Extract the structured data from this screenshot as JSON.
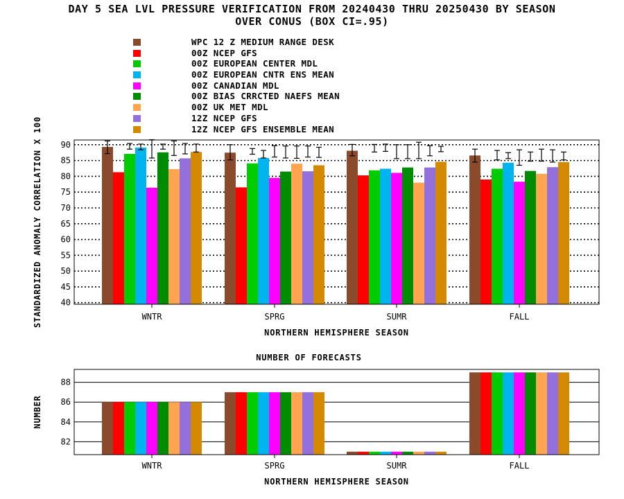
{
  "title_line1": "DAY 5 SEA LVL PRESSURE VERIFICATION FROM 20240430 THRU 20250430 BY SEASON",
  "title_line2": "OVER CONUS (BOX CI=.95)",
  "legend": [
    {
      "label": "WPC 12 Z MEDIUM RANGE DESK",
      "color": "#8b4a2b"
    },
    {
      "label": "00Z NCEP GFS",
      "color": "#ff0000"
    },
    {
      "label": "00Z EUROPEAN CENTER MDL",
      "color": "#00cc00"
    },
    {
      "label": "00Z EUROPEAN CNTR ENS MEAN",
      "color": "#00b4f0"
    },
    {
      "label": "00Z CANADIAN MDL",
      "color": "#ff00ff"
    },
    {
      "label": "00Z BIAS CRRCTED NAEFS MEAN",
      "color": "#008c00"
    },
    {
      "label": "00Z UK MET MDL",
      "color": "#ffa550"
    },
    {
      "label": "12Z NCEP GFS",
      "color": "#9370db"
    },
    {
      "label": "12Z NCEP GFS ENSEMBLE MEAN",
      "color": "#d48a00"
    }
  ],
  "chart_data": [
    {
      "type": "bar",
      "ylabel": "STANDARDIZED ANOMALY CORRELATION X 100",
      "xlabel": "NORTHERN HEMISPHERE SEASON",
      "categories": [
        "WNTR",
        "SPRG",
        "SUMR",
        "FALL"
      ],
      "ylim": [
        39.5,
        91.5
      ],
      "yticks": [
        40,
        45,
        50,
        55,
        60,
        65,
        70,
        75,
        80,
        85,
        90
      ],
      "grid": "dotted",
      "series": [
        {
          "name": "WPC 12 Z MEDIUM RANGE DESK",
          "values": [
            89.3,
            87.5,
            88.1,
            86.6
          ],
          "ci": [
            [
              87.2,
              91.2
            ],
            [
              85.2,
              90.0
            ],
            [
              86.5,
              90.1
            ],
            [
              84.5,
              88.6
            ]
          ]
        },
        {
          "name": "00Z NCEP GFS",
          "values": [
            81.3,
            76.5,
            80.3,
            79.0
          ],
          "ci": null
        },
        {
          "name": "00Z EUROPEAN CENTER MDL",
          "values": [
            87.1,
            84.1,
            81.9,
            82.4
          ],
          "ci": [
            [
              88.6,
              90.4
            ],
            [
              87.0,
              88.8
            ],
            [
              87.7,
              90.1
            ],
            [
              85.2,
              88.2
            ]
          ]
        },
        {
          "name": "00Z EUROPEAN CNTR ENS MEAN",
          "values": [
            89.1,
            85.8,
            82.4,
            84.3
          ],
          "ci": [
            [
              88.4,
              90.2
            ],
            [
              85.8,
              88.2
            ],
            [
              87.9,
              90.2
            ],
            [
              85.6,
              87.5
            ]
          ]
        },
        {
          "name": "00Z CANADIAN MDL",
          "values": [
            76.4,
            79.5,
            81.1,
            78.3
          ],
          "ci": [
            [
              85.8,
              91.6
            ],
            [
              86.1,
              89.7
            ],
            [
              85.6,
              90.0
            ],
            [
              83.5,
              88.4
            ]
          ]
        },
        {
          "name": "00Z BIAS CRRCTED NAEFS MEAN",
          "values": [
            87.6,
            81.5,
            82.8,
            81.7
          ],
          "ci": [
            [
              88.6,
              90.2
            ],
            [
              85.8,
              89.6
            ],
            [
              85.6,
              90.0
            ],
            [
              84.8,
              87.7
            ]
          ]
        },
        {
          "name": "00Z UK MET MDL",
          "values": [
            82.3,
            84.0,
            78.0,
            80.8
          ],
          "ci": [
            [
              86.6,
              91.2
            ],
            [
              85.7,
              89.6
            ],
            [
              85.6,
              90.8
            ],
            [
              84.8,
              88.6
            ]
          ]
        },
        {
          "name": "12Z NCEP GFS",
          "values": [
            85.7,
            81.6,
            82.8,
            82.9
          ],
          "ci": [
            [
              87.1,
              90.4
            ],
            [
              86.1,
              89.6
            ],
            [
              86.5,
              89.7
            ],
            [
              84.5,
              88.4
            ]
          ]
        },
        {
          "name": "12Z NCEP GFS ENSEMBLE MEAN",
          "values": [
            87.7,
            83.5,
            84.6,
            84.5
          ],
          "ci": [
            [
              87.7,
              90.2
            ],
            [
              86.0,
              89.2
            ],
            [
              87.8,
              89.5
            ],
            [
              85.2,
              87.7
            ]
          ]
        }
      ]
    },
    {
      "type": "bar",
      "title": "NUMBER OF FORECASTS",
      "ylabel": "NUMBER",
      "xlabel": "NORTHERN HEMISPHERE SEASON",
      "categories": [
        "WNTR",
        "SPRG",
        "SUMR",
        "FALL"
      ],
      "ylim": [
        80.7,
        89.3
      ],
      "yticks": [
        82,
        84,
        86,
        88
      ],
      "grid": "solid",
      "series": [
        {
          "name": "WPC 12 Z MEDIUM RANGE DESK",
          "values": [
            86,
            87,
            81,
            89
          ]
        },
        {
          "name": "00Z NCEP GFS",
          "values": [
            86,
            87,
            81,
            89
          ]
        },
        {
          "name": "00Z EUROPEAN CENTER MDL",
          "values": [
            86,
            87,
            81,
            89
          ]
        },
        {
          "name": "00Z EUROPEAN CNTR ENS MEAN",
          "values": [
            86,
            87,
            81,
            89
          ]
        },
        {
          "name": "00Z CANADIAN MDL",
          "values": [
            86,
            87,
            81,
            89
          ]
        },
        {
          "name": "00Z BIAS CRRCTED NAEFS MEAN",
          "values": [
            86,
            87,
            81,
            89
          ]
        },
        {
          "name": "00Z UK MET MDL",
          "values": [
            86,
            87,
            81,
            89
          ]
        },
        {
          "name": "12Z NCEP GFS",
          "values": [
            86,
            87,
            81,
            89
          ]
        },
        {
          "name": "12Z NCEP GFS ENSEMBLE MEAN",
          "values": [
            86,
            87,
            81,
            89
          ]
        }
      ]
    }
  ]
}
